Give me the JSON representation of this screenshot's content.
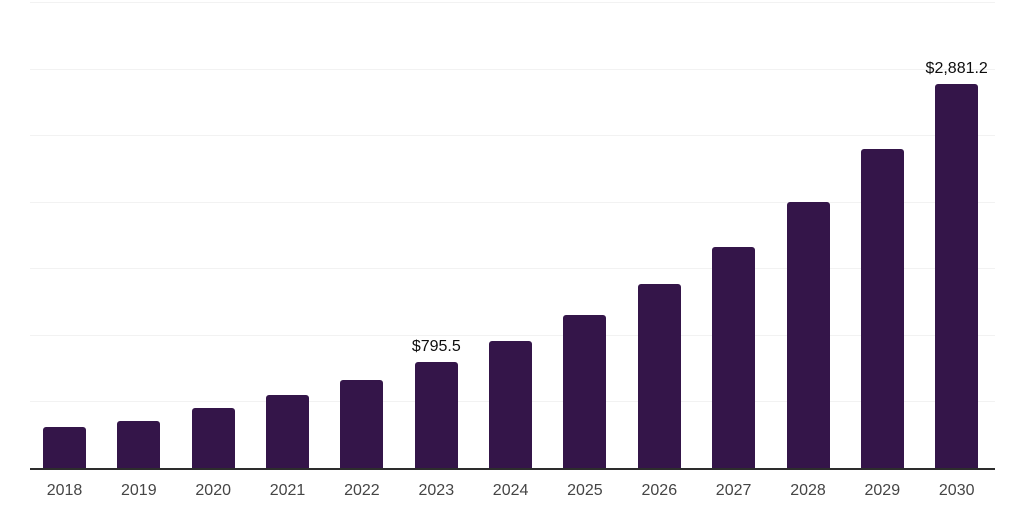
{
  "chart_data": {
    "type": "bar",
    "title": "",
    "xlabel": "",
    "ylabel": "",
    "categories": [
      "2018",
      "2019",
      "2020",
      "2021",
      "2022",
      "2023",
      "2024",
      "2025",
      "2026",
      "2027",
      "2028",
      "2029",
      "2030"
    ],
    "values": [
      310,
      350,
      452,
      545,
      660,
      795.5,
      955,
      1148,
      1380,
      1660,
      1995,
      2398,
      2881.2
    ],
    "data_labels": {
      "2023": "$795.5",
      "2030": "$2,881.2"
    },
    "ylim": [
      0,
      3500
    ],
    "gridline_step": 500,
    "grid": true,
    "legend": "none",
    "colors": {
      "bar": "#341549",
      "axis": "#2d2d2d",
      "gridline": "#f2f2f2",
      "data_label": "#0d0d0d",
      "tick_label": "#454545",
      "background": "#ffffff"
    }
  }
}
